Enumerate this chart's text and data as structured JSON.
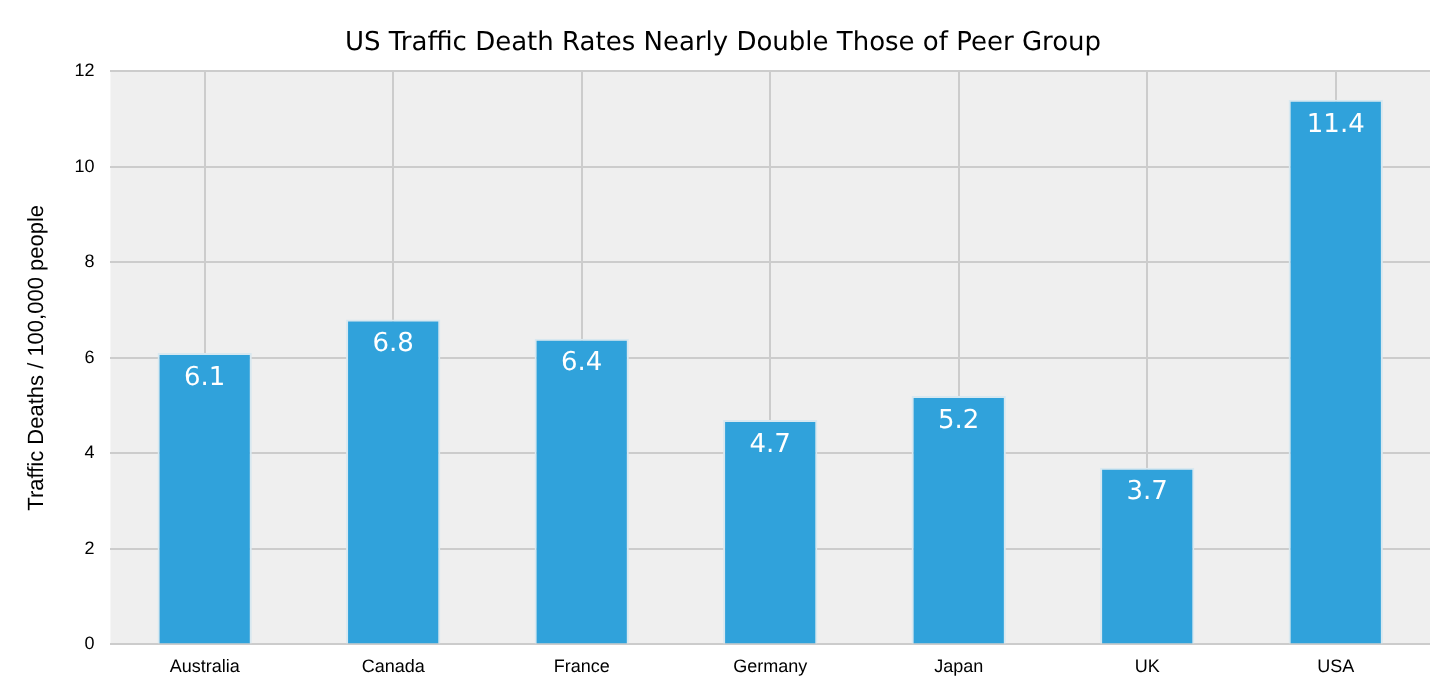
{
  "chart_data": {
    "type": "bar",
    "title": "US Traffic Death Rates Nearly Double Those of Peer Group",
    "ylabel": "Traffic Deaths / 100,000 people",
    "categories": [
      "Australia",
      "Canada",
      "France",
      "Germany",
      "Japan",
      "UK",
      "USA"
    ],
    "values": [
      6.1,
      6.8,
      6.4,
      4.7,
      5.2,
      3.7,
      11.4
    ],
    "color": "#30a2db",
    "ylim": [
      0,
      12
    ],
    "yticks": [
      0,
      2,
      4,
      6,
      8,
      10,
      12
    ],
    "grid": true,
    "data_labels": true
  }
}
